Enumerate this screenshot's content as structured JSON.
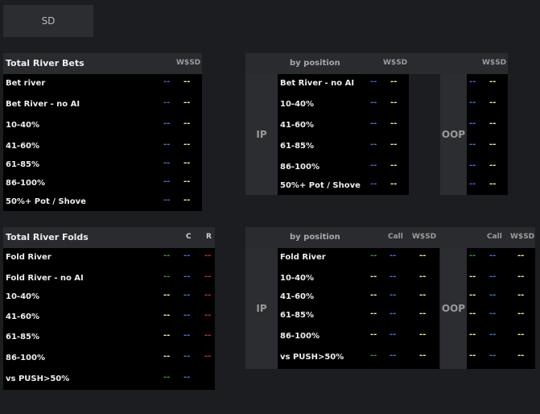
{
  "tab": {
    "label": "SD"
  },
  "river_bets": {
    "title": "Total River Bets",
    "col_wssd": "W$SD",
    "rows": [
      {
        "label": "Bet river",
        "v1": "--",
        "v2": "--"
      },
      {
        "label": "Bet River - no AI",
        "v1": "--",
        "v2": "--"
      },
      {
        "label": "10-40%",
        "v1": "--",
        "v2": "--"
      },
      {
        "label": "41-60%",
        "v1": "--",
        "v2": "--"
      },
      {
        "label": "61-85%",
        "v1": "--",
        "v2": "--"
      },
      {
        "label": "86-100%",
        "v1": "--",
        "v2": "--"
      },
      {
        "label": "50%+ Pot / Shove",
        "v1": "--",
        "v2": "--"
      }
    ]
  },
  "bets_position": {
    "header": "by position",
    "col_wssd": "W$SD",
    "col_wssd_oop": "W$SD",
    "ip_label": "IP",
    "oop_label": "OOP",
    "rows": [
      {
        "label": "Bet River - no AI",
        "ip1": "--",
        "ip2": "--",
        "oop1": "--",
        "oop2": "--"
      },
      {
        "label": "10-40%",
        "ip1": "--",
        "ip2": "--",
        "oop1": "--",
        "oop2": "--"
      },
      {
        "label": "41-60%",
        "ip1": "--",
        "ip2": "--",
        "oop1": "--",
        "oop2": "--"
      },
      {
        "label": "61-85%",
        "ip1": "--",
        "ip2": "--",
        "oop1": "--",
        "oop2": "--"
      },
      {
        "label": "86-100%",
        "ip1": "--",
        "ip2": "--",
        "oop1": "--",
        "oop2": "--"
      },
      {
        "label": "50%+ Pot / Shove",
        "ip1": "--",
        "ip2": "--",
        "oop1": "--",
        "oop2": "--"
      }
    ]
  },
  "river_folds": {
    "title": "Total River Folds",
    "col_c": "C",
    "col_r": "R",
    "rows": [
      {
        "label": "Fold River",
        "v1": "--",
        "v2": "--",
        "v3": "--"
      },
      {
        "label": "Fold River - no AI",
        "v1": "--",
        "v2": "--",
        "v3": "--"
      },
      {
        "label": "10-40%",
        "v1": "--",
        "v2": "--",
        "v3": "--"
      },
      {
        "label": "41-60%",
        "v1": "--",
        "v2": "--",
        "v3": "--"
      },
      {
        "label": "61-85%",
        "v1": "--",
        "v2": "--",
        "v3": "--"
      },
      {
        "label": "86-100%",
        "v1": "--",
        "v2": "--",
        "v3": "--"
      },
      {
        "label": "vs PUSH>50%",
        "v1": "--",
        "v2": "--"
      }
    ]
  },
  "folds_position": {
    "header": "by position",
    "col_call": "Call",
    "col_wssd": "W$SD",
    "col_call_oop": "Call",
    "col_wssd_oop": "W$SD",
    "ip_label": "IP",
    "oop_label": "OOP",
    "rows": [
      {
        "label": "Fold River",
        "ip1": "--",
        "ip2": "--",
        "ip3": "--",
        "oop1": "--",
        "oop2": "--",
        "oop3": "--"
      },
      {
        "label": "10-40%",
        "ip1": "--",
        "ip2": "--",
        "ip3": "--",
        "oop1": "--",
        "oop2": "--",
        "oop3": "--"
      },
      {
        "label": "41-60%",
        "ip1": "--",
        "ip2": "--",
        "ip3": "--",
        "oop1": "--",
        "oop2": "--",
        "oop3": "--"
      },
      {
        "label": "61-85%",
        "ip1": "--",
        "ip2": "--",
        "ip3": "--",
        "oop1": "--",
        "oop2": "--",
        "oop3": "--"
      },
      {
        "label": "86-100%",
        "ip1": "--",
        "ip2": "--",
        "ip3": "--",
        "oop1": "--",
        "oop2": "--",
        "oop3": "--"
      },
      {
        "label": "vs PUSH>50%",
        "ip1": "--",
        "ip2": "--",
        "ip3": "--",
        "oop1": "--",
        "oop2": "--",
        "oop3": "--"
      }
    ]
  }
}
